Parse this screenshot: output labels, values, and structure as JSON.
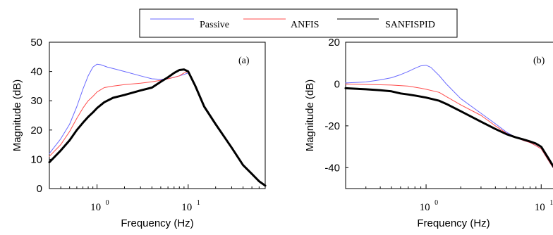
{
  "legend": {
    "entries": [
      {
        "label": "Passive",
        "color": "#6a6aff"
      },
      {
        "label": "ANFIS",
        "color": "#ff4c4c"
      },
      {
        "label": "SANFISPID",
        "color": "#000000"
      }
    ]
  },
  "chart_data": [
    {
      "type": "line",
      "panel_label": "(a)",
      "xlabel": "Frequency  (Hz)",
      "ylabel": "Magnitude (dB)",
      "xscale": "log",
      "xlim": [
        0.3,
        70
      ],
      "ylim": [
        0,
        50
      ],
      "yticks": [
        0,
        10,
        20,
        30,
        40,
        50
      ],
      "xticks": [
        {
          "base": "10",
          "exp": "0",
          "value": 1
        },
        {
          "base": "10",
          "exp": "1",
          "value": 10
        }
      ],
      "grid": false,
      "legend_position": "top-center",
      "series": [
        {
          "name": "Passive",
          "color": "#6a6aff",
          "width": 1,
          "x": [
            0.3,
            0.4,
            0.5,
            0.6,
            0.7,
            0.8,
            0.9,
            1.0,
            1.1,
            1.3,
            1.5,
            2,
            3,
            4,
            5,
            6,
            7,
            8,
            9,
            10,
            12,
            15,
            20,
            30,
            40,
            50,
            60,
            70
          ],
          "y": [
            12,
            17,
            22,
            28,
            34,
            38.5,
            41.5,
            42.5,
            42.3,
            41.5,
            41,
            40,
            38.5,
            37.5,
            37.3,
            37.5,
            38,
            38.5,
            39,
            39.5,
            35,
            28,
            22,
            14,
            8,
            5,
            2.5,
            1
          ]
        },
        {
          "name": "ANFIS",
          "color": "#ff4c4c",
          "width": 1,
          "x": [
            0.3,
            0.4,
            0.5,
            0.6,
            0.7,
            0.8,
            0.9,
            1.0,
            1.2,
            1.5,
            2,
            3,
            4,
            5,
            6,
            7,
            8,
            9,
            10,
            12,
            15,
            20,
            30,
            40,
            50,
            60,
            70
          ],
          "y": [
            11,
            15,
            19.5,
            24,
            27.5,
            30,
            31.5,
            33,
            34.5,
            35,
            35.5,
            36,
            36.5,
            37,
            37.5,
            38,
            38.5,
            39.5,
            40,
            35,
            28,
            22,
            14,
            8,
            5,
            2.5,
            1
          ]
        },
        {
          "name": "SANFISPID",
          "color": "#000000",
          "width": 3,
          "x": [
            0.3,
            0.4,
            0.5,
            0.6,
            0.7,
            0.8,
            0.9,
            1.0,
            1.2,
            1.5,
            2,
            3,
            4,
            5,
            6,
            7,
            8,
            9,
            10,
            12,
            15,
            20,
            30,
            40,
            50,
            60,
            70
          ],
          "y": [
            9,
            13,
            16.5,
            20,
            22.5,
            24.5,
            26,
            27.5,
            29.5,
            31,
            32,
            33.5,
            34.5,
            36.5,
            38,
            39.5,
            40.5,
            40.7,
            40,
            35,
            28,
            22,
            14,
            8,
            5,
            2.5,
            1
          ]
        }
      ]
    },
    {
      "type": "line",
      "panel_label": "(b)",
      "xlabel": "Frequency  (Hz)",
      "ylabel": "Magnitude (dB)",
      "xscale": "log",
      "xlim": [
        0.2,
        15
      ],
      "ylim": [
        -50,
        20
      ],
      "yticks": [
        -40,
        -20,
        0,
        20
      ],
      "xticks": [
        {
          "base": "10",
          "exp": "0",
          "value": 1
        },
        {
          "base": "10",
          "exp": "1",
          "value": 10
        }
      ],
      "grid": false,
      "series": [
        {
          "name": "Passive",
          "color": "#6a6aff",
          "width": 1,
          "x": [
            0.2,
            0.3,
            0.4,
            0.5,
            0.6,
            0.7,
            0.8,
            0.9,
            1.0,
            1.1,
            1.3,
            1.5,
            2,
            3,
            4,
            5,
            6,
            7,
            8,
            9,
            10,
            12,
            15
          ],
          "y": [
            0.5,
            1,
            2,
            3,
            4.5,
            6,
            7.5,
            8.7,
            9,
            8,
            4,
            0,
            -7,
            -14,
            -19,
            -23,
            -25.5,
            -27,
            -28,
            -29.5,
            -31,
            -38,
            -46
          ]
        },
        {
          "name": "ANFIS",
          "color": "#ff4c4c",
          "width": 1,
          "x": [
            0.2,
            0.3,
            0.5,
            0.7,
            0.9,
            1.0,
            1.3,
            1.5,
            2,
            3,
            4,
            5,
            6,
            7,
            8,
            9,
            10,
            12,
            15
          ],
          "y": [
            0,
            -0.2,
            -0.5,
            -1,
            -2,
            -2.5,
            -4,
            -6,
            -10,
            -15,
            -20,
            -23.5,
            -25.5,
            -27,
            -28,
            -29.5,
            -31,
            -38,
            -46
          ]
        },
        {
          "name": "SANFISPID",
          "color": "#000000",
          "width": 3,
          "x": [
            0.2,
            0.3,
            0.4,
            0.5,
            0.6,
            0.7,
            0.8,
            0.9,
            1.0,
            1.3,
            1.5,
            2,
            3,
            4,
            5,
            6,
            7,
            8,
            9,
            10,
            12,
            15
          ],
          "y": [
            -2,
            -2.5,
            -3,
            -3.5,
            -4.5,
            -5,
            -5.5,
            -6,
            -6.5,
            -8,
            -9.5,
            -13,
            -18,
            -21.5,
            -24,
            -25.5,
            -26.5,
            -27.5,
            -28.5,
            -30,
            -37,
            -46
          ]
        }
      ]
    }
  ]
}
